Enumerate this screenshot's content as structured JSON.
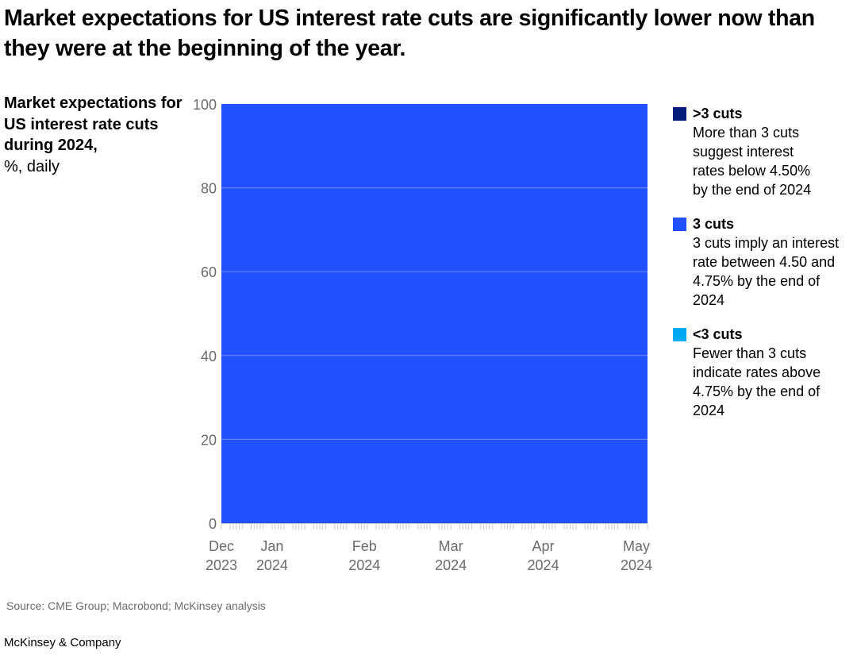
{
  "title": "Market expectations for US interest rate cuts are significantly lower now than they were at the beginning of the year.",
  "ylabel_bold": "Market expectations for US interest rate cuts during 2024,",
  "ylabel_unit": "%, daily",
  "source": "Source: CME Group; Macrobond; McKinsey analysis",
  "brand": "McKinsey & Company",
  "legend": [
    {
      "label": ">3 cuts",
      "desc": "More than 3 cuts suggest interest rates below 4.50% by the end of 2024",
      "color": "#051c7a"
    },
    {
      "label": "3 cuts",
      "desc": "3 cuts imply an interest rate between 4.50 and 4.75% by the end of 2024",
      "color": "#2251ff"
    },
    {
      "label": "<3 cuts",
      "desc": "Fewer than 3 cuts indicate rates above 4.75% by the end of 2024",
      "color": "#00a9f4"
    }
  ],
  "chart_data": {
    "type": "area",
    "stacked": true,
    "x": [
      "2023-12-15",
      "2024-05-06"
    ],
    "series": [
      {
        "name": "<3 cuts",
        "values": [
          0,
          0
        ],
        "color": "#00a9f4"
      },
      {
        "name": "3 cuts",
        "values": [
          100,
          100
        ],
        "color": "#2251ff"
      },
      {
        "name": ">3 cuts",
        "values": [
          0,
          0
        ],
        "color": "#051c7a"
      }
    ],
    "ylim": [
      0,
      100
    ],
    "yticks": [
      0,
      20,
      40,
      60,
      80,
      100
    ],
    "xticks": [
      {
        "date": "2023-12-15",
        "line1": "Dec",
        "line2": "2023"
      },
      {
        "date": "2024-01-01",
        "line1": "Jan",
        "line2": "2024"
      },
      {
        "date": "2024-02-01",
        "line1": "Feb",
        "line2": "2024"
      },
      {
        "date": "2024-03-01",
        "line1": "Mar",
        "line2": "2024"
      },
      {
        "date": "2024-04-01",
        "line1": "Apr",
        "line2": "2024"
      },
      {
        "date": "2024-05-01",
        "line1": "May",
        "line2": "2024"
      }
    ],
    "grid": true,
    "legend_position": "right"
  }
}
